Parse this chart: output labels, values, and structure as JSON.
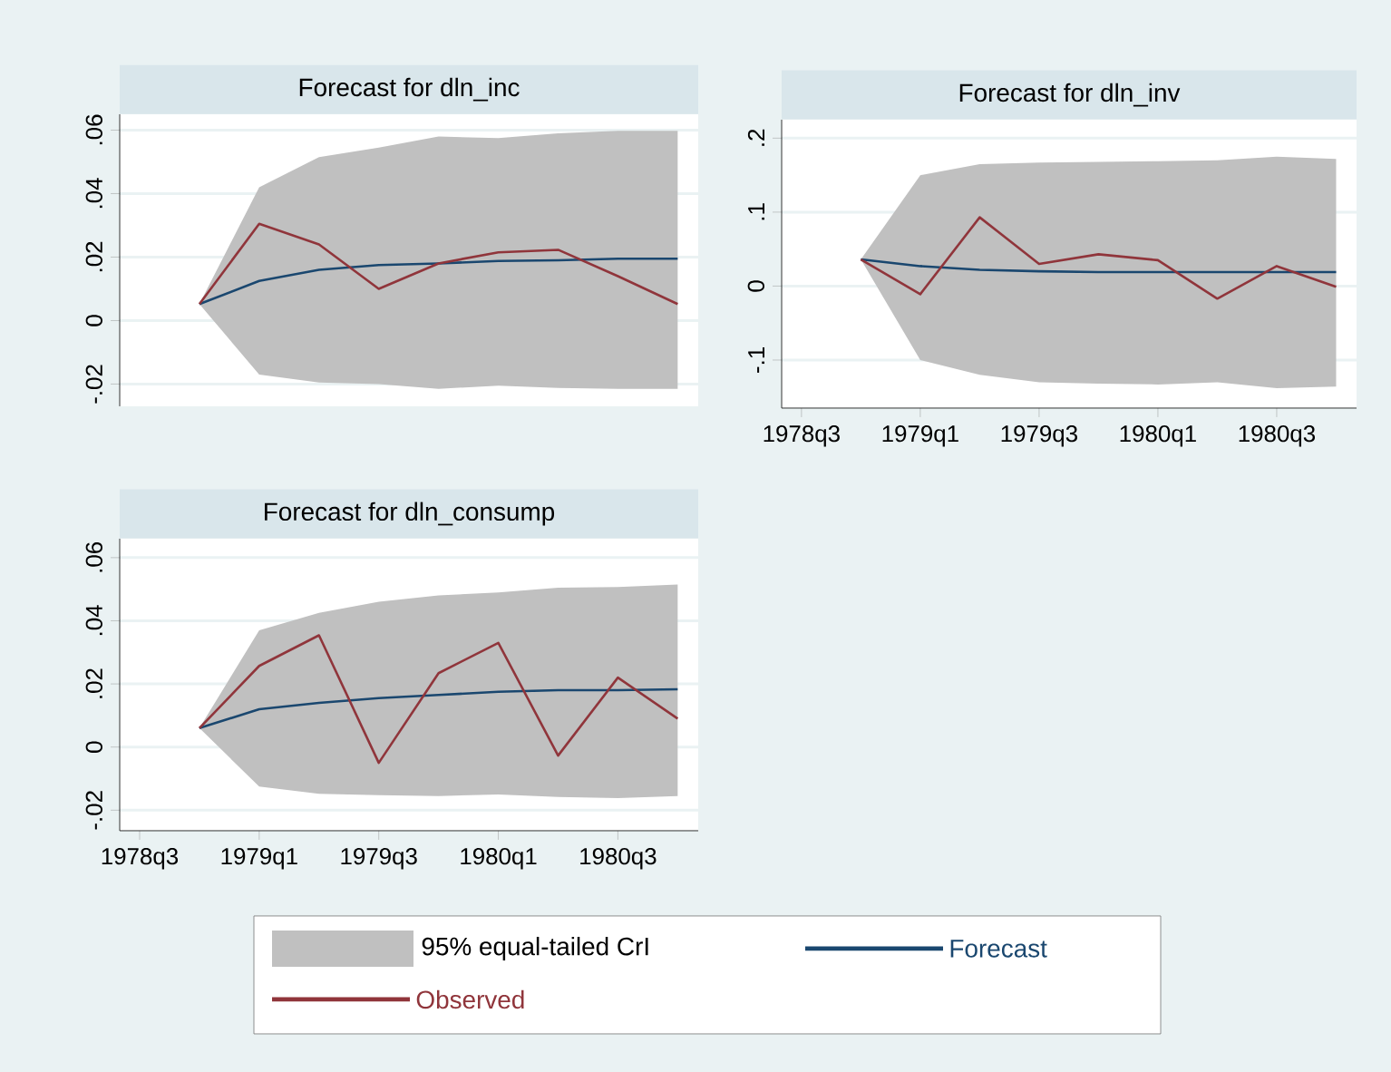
{
  "chart_data": [
    {
      "type": "line",
      "title": "Forecast for dln_inc",
      "x": [
        "1978-10",
        "1979-01",
        "1979-04",
        "1979-07",
        "1979-10",
        "1980-01",
        "1980-04",
        "1980-07",
        "1980-10"
      ],
      "xlim": [
        "1978-06-01",
        "1980-11-02"
      ],
      "ylim": [
        -0.027,
        0.065
      ],
      "yticks": [
        {
          "value": -0.02,
          "label": "-.02"
        },
        0,
        {
          "value": 0.02,
          "label": ".02"
        },
        {
          "value": 0.04,
          "label": ".04"
        },
        {
          "value": 0.06,
          "label": ".06"
        }
      ],
      "tick_labels": "y",
      "grid": "y",
      "series": [
        {
          "color": "#1a476f",
          "values": [
            0.0052,
            0.0125,
            0.016,
            0.0175,
            0.018,
            0.0188,
            0.019,
            0.0195,
            0.0195
          ],
          "lower": [
            0.0052,
            -0.017,
            -0.0195,
            -0.02,
            -0.0215,
            -0.0205,
            -0.0212,
            -0.0215,
            -0.0215
          ],
          "upper": [
            0.0052,
            0.042,
            0.0515,
            0.0545,
            0.058,
            0.0575,
            0.059,
            0.0598,
            0.0598
          ]
        },
        {
          "color": "#90353b",
          "values": [
            0.0052,
            0.0305,
            0.024,
            0.01,
            0.018,
            0.0215,
            0.0223,
            0.014,
            0.0052
          ]
        }
      ]
    },
    {
      "type": "line",
      "title": "Forecast for dln_inv",
      "x": [
        "1978-10",
        "1979-01",
        "1979-04",
        "1979-07",
        "1979-10",
        "1980-01",
        "1980-04",
        "1980-07",
        "1980-10"
      ],
      "xlim": [
        "1978-06-01",
        "1980-11-02"
      ],
      "xticks": [
        {
          "value": "1978-07",
          "label": "1978q3"
        },
        {
          "value": "1979-01",
          "label": "1979q1"
        },
        {
          "value": "1979-07",
          "label": "1979q3"
        },
        {
          "value": "1980-01",
          "label": "1980q1"
        },
        {
          "value": "1980-07",
          "label": "1980q3"
        }
      ],
      "ylim": [
        -0.165,
        0.225
      ],
      "yticks": [
        {
          "value": -0.1,
          "label": "-.1"
        },
        0,
        {
          "value": 0.1,
          "label": ".1"
        },
        {
          "value": 0.2,
          "label": ".2"
        }
      ],
      "grid": "y",
      "series": [
        {
          "color": "#1a476f",
          "values": [
            0.036,
            0.027,
            0.022,
            0.02,
            0.019,
            0.019,
            0.019,
            0.019,
            0.019
          ],
          "lower": [
            0.036,
            -0.1,
            -0.12,
            -0.13,
            -0.132,
            -0.133,
            -0.13,
            -0.138,
            -0.136
          ],
          "upper": [
            0.036,
            0.15,
            0.165,
            0.167,
            0.168,
            0.169,
            0.17,
            0.175,
            0.172
          ]
        },
        {
          "color": "#90353b",
          "values": [
            0.036,
            -0.011,
            0.093,
            0.03,
            0.043,
            0.035,
            -0.017,
            0.027,
            -0.001
          ]
        }
      ]
    },
    {
      "type": "line",
      "title": "Forecast for dln_consump",
      "x": [
        "1978-10",
        "1979-01",
        "1979-04",
        "1979-07",
        "1979-10",
        "1980-01",
        "1980-04",
        "1980-07",
        "1980-10"
      ],
      "xlim": [
        "1978-06-01",
        "1980-11-02"
      ],
      "xticks": [
        {
          "value": "1978-07",
          "label": "1978q3"
        },
        {
          "value": "1979-01",
          "label": "1979q1"
        },
        {
          "value": "1979-07",
          "label": "1979q3"
        },
        {
          "value": "1980-01",
          "label": "1980q1"
        },
        {
          "value": "1980-07",
          "label": "1980q3"
        }
      ],
      "ylim": [
        -0.0265,
        0.066
      ],
      "yticks": [
        {
          "value": -0.02,
          "label": "-.02"
        },
        0,
        {
          "value": 0.02,
          "label": ".02"
        },
        {
          "value": 0.04,
          "label": ".04"
        },
        {
          "value": 0.06,
          "label": ".06"
        }
      ],
      "grid": "y",
      "legend": "bottom",
      "annotations": [
        "95% equal-tailed CrI"
      ],
      "series": [
        {
          "name": "Forecast",
          "color": "#1a476f",
          "values": [
            0.006,
            0.012,
            0.014,
            0.0155,
            0.0165,
            0.0175,
            0.018,
            0.018,
            0.0183
          ],
          "lower": [
            0.006,
            -0.0125,
            -0.0148,
            -0.0152,
            -0.0155,
            -0.015,
            -0.0158,
            -0.0162,
            -0.0155
          ],
          "upper": [
            0.006,
            0.037,
            0.0425,
            0.046,
            0.048,
            0.049,
            0.0505,
            0.0507,
            0.0515
          ]
        },
        {
          "name": "Observed",
          "color": "#90353b",
          "values": [
            0.006,
            0.0257,
            0.0354,
            -0.005,
            0.0234,
            0.033,
            -0.0027,
            0.022,
            0.009
          ]
        }
      ]
    }
  ]
}
